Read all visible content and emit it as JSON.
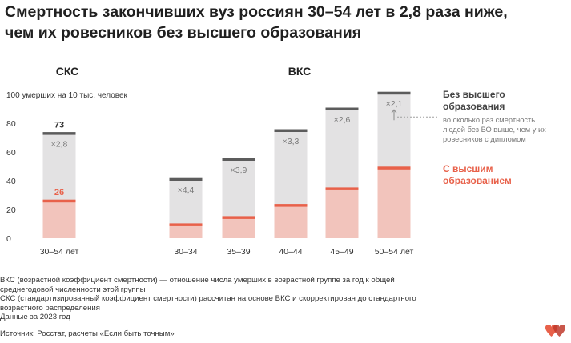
{
  "title_line1": "Смертность закончивших вуз россиян 30–54 лет в 2,8 раза ниже,",
  "title_line2": "чем их ровесников без высшего образования",
  "panels": {
    "left": "СКС",
    "right": "ВКС"
  },
  "legend": {
    "without_line1": "Без высшего",
    "without_line2": "образования",
    "ratio_line1": "во сколько раз смертность",
    "ratio_line2": "людей без ВО выше, чем у их",
    "ratio_line3": "ровесников с дипломом",
    "with_line1": "С высшим",
    "with_line2": "образованием"
  },
  "colors": {
    "bar_bg": "#e3e2e3",
    "without_cap": "#5c5c5c",
    "with_fill": "#f2c4bc",
    "with_cap": "#e8614a",
    "accent": "#e8614a",
    "ratio_text": "#7a7a7a",
    "axis_text": "#333333"
  },
  "chart_data": {
    "type": "bar",
    "ylabel": "100 умерших на 10 тыс. человек",
    "ylim": [
      0,
      100
    ],
    "yticks": [
      0,
      20,
      40,
      60,
      80,
      100
    ],
    "yticklabels": [
      "0",
      "20",
      "40",
      "60",
      "80",
      "100 умерших на 10 тыс. человек"
    ],
    "groups": [
      {
        "panel": "СКС",
        "categories": [
          "30–54 лет"
        ],
        "without_higher_education": [
          73
        ],
        "with_higher_education": [
          26
        ],
        "ratios": [
          "×2,8"
        ],
        "value_labels_without": [
          "73"
        ],
        "value_labels_with": [
          "26"
        ]
      },
      {
        "panel": "ВКС",
        "categories": [
          "30–34",
          "35–39",
          "40–44",
          "45–49",
          "50–54 лет"
        ],
        "without_higher_education": [
          41,
          55,
          75,
          90,
          101
        ],
        "with_higher_education": [
          9.5,
          14.5,
          23,
          34.5,
          49
        ],
        "ratios": [
          "×4,4",
          "×3,9",
          "×3,3",
          "×2,6",
          "×2,1"
        ]
      }
    ]
  },
  "notes": {
    "line1": "ВКС (возрастной коэффициент смертности) — отношение числа умерших в возрастной группе за год к общей",
    "line2": "среднегодовой численности этой группы",
    "line3": "СКС (стандартизированный коэффициент смертности) рассчитан на основе ВКС и скорректирован до стандартного",
    "line4": "возрастного распределения",
    "line5": "Данные за 2023 год"
  },
  "source": "Источник: Росстат, расчеты «Если быть точным»",
  "logo_icon": "hearts-logo-icon"
}
